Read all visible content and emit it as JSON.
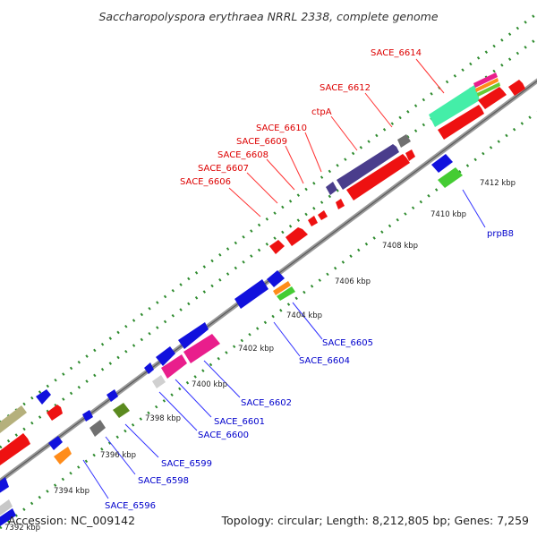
{
  "title": "Saccharopolyspora erythraea NRRL 2338, complete genome",
  "footer": {
    "accession": "Accession: NC_009142",
    "summary": "Topology: circular; Length: 8,212,805 bp; Genes: 7,259"
  },
  "colors": {
    "background": "#ffffff",
    "backbone": "#8a8a8a",
    "ruler": "#2e8b2e",
    "label_forward": "#dd0000",
    "label_reverse": "#0000cc",
    "connector_forward": "#ff3333",
    "connector_reverse": "#3333ff"
  },
  "tick_labels": [
    "7392 kbp",
    "7394 kbp",
    "7396 kbp",
    "7398 kbp",
    "7400 kbp",
    "7402 kbp",
    "7404 kbp",
    "7406 kbp",
    "7408 kbp",
    "7410 kbp",
    "7412 kbp"
  ],
  "forward_labels": [
    "SACE_6606",
    "SACE_6607",
    "SACE_6608",
    "SACE_6609",
    "SACE_6610",
    "ctpA",
    "SACE_6612",
    "SACE_6614"
  ],
  "reverse_labels": [
    "SACE_6596",
    "SACE_6598",
    "SACE_6599",
    "SACE_6600",
    "SACE_6601",
    "SACE_6602",
    "SACE_6604",
    "SACE_6605",
    "prpB8"
  ]
}
